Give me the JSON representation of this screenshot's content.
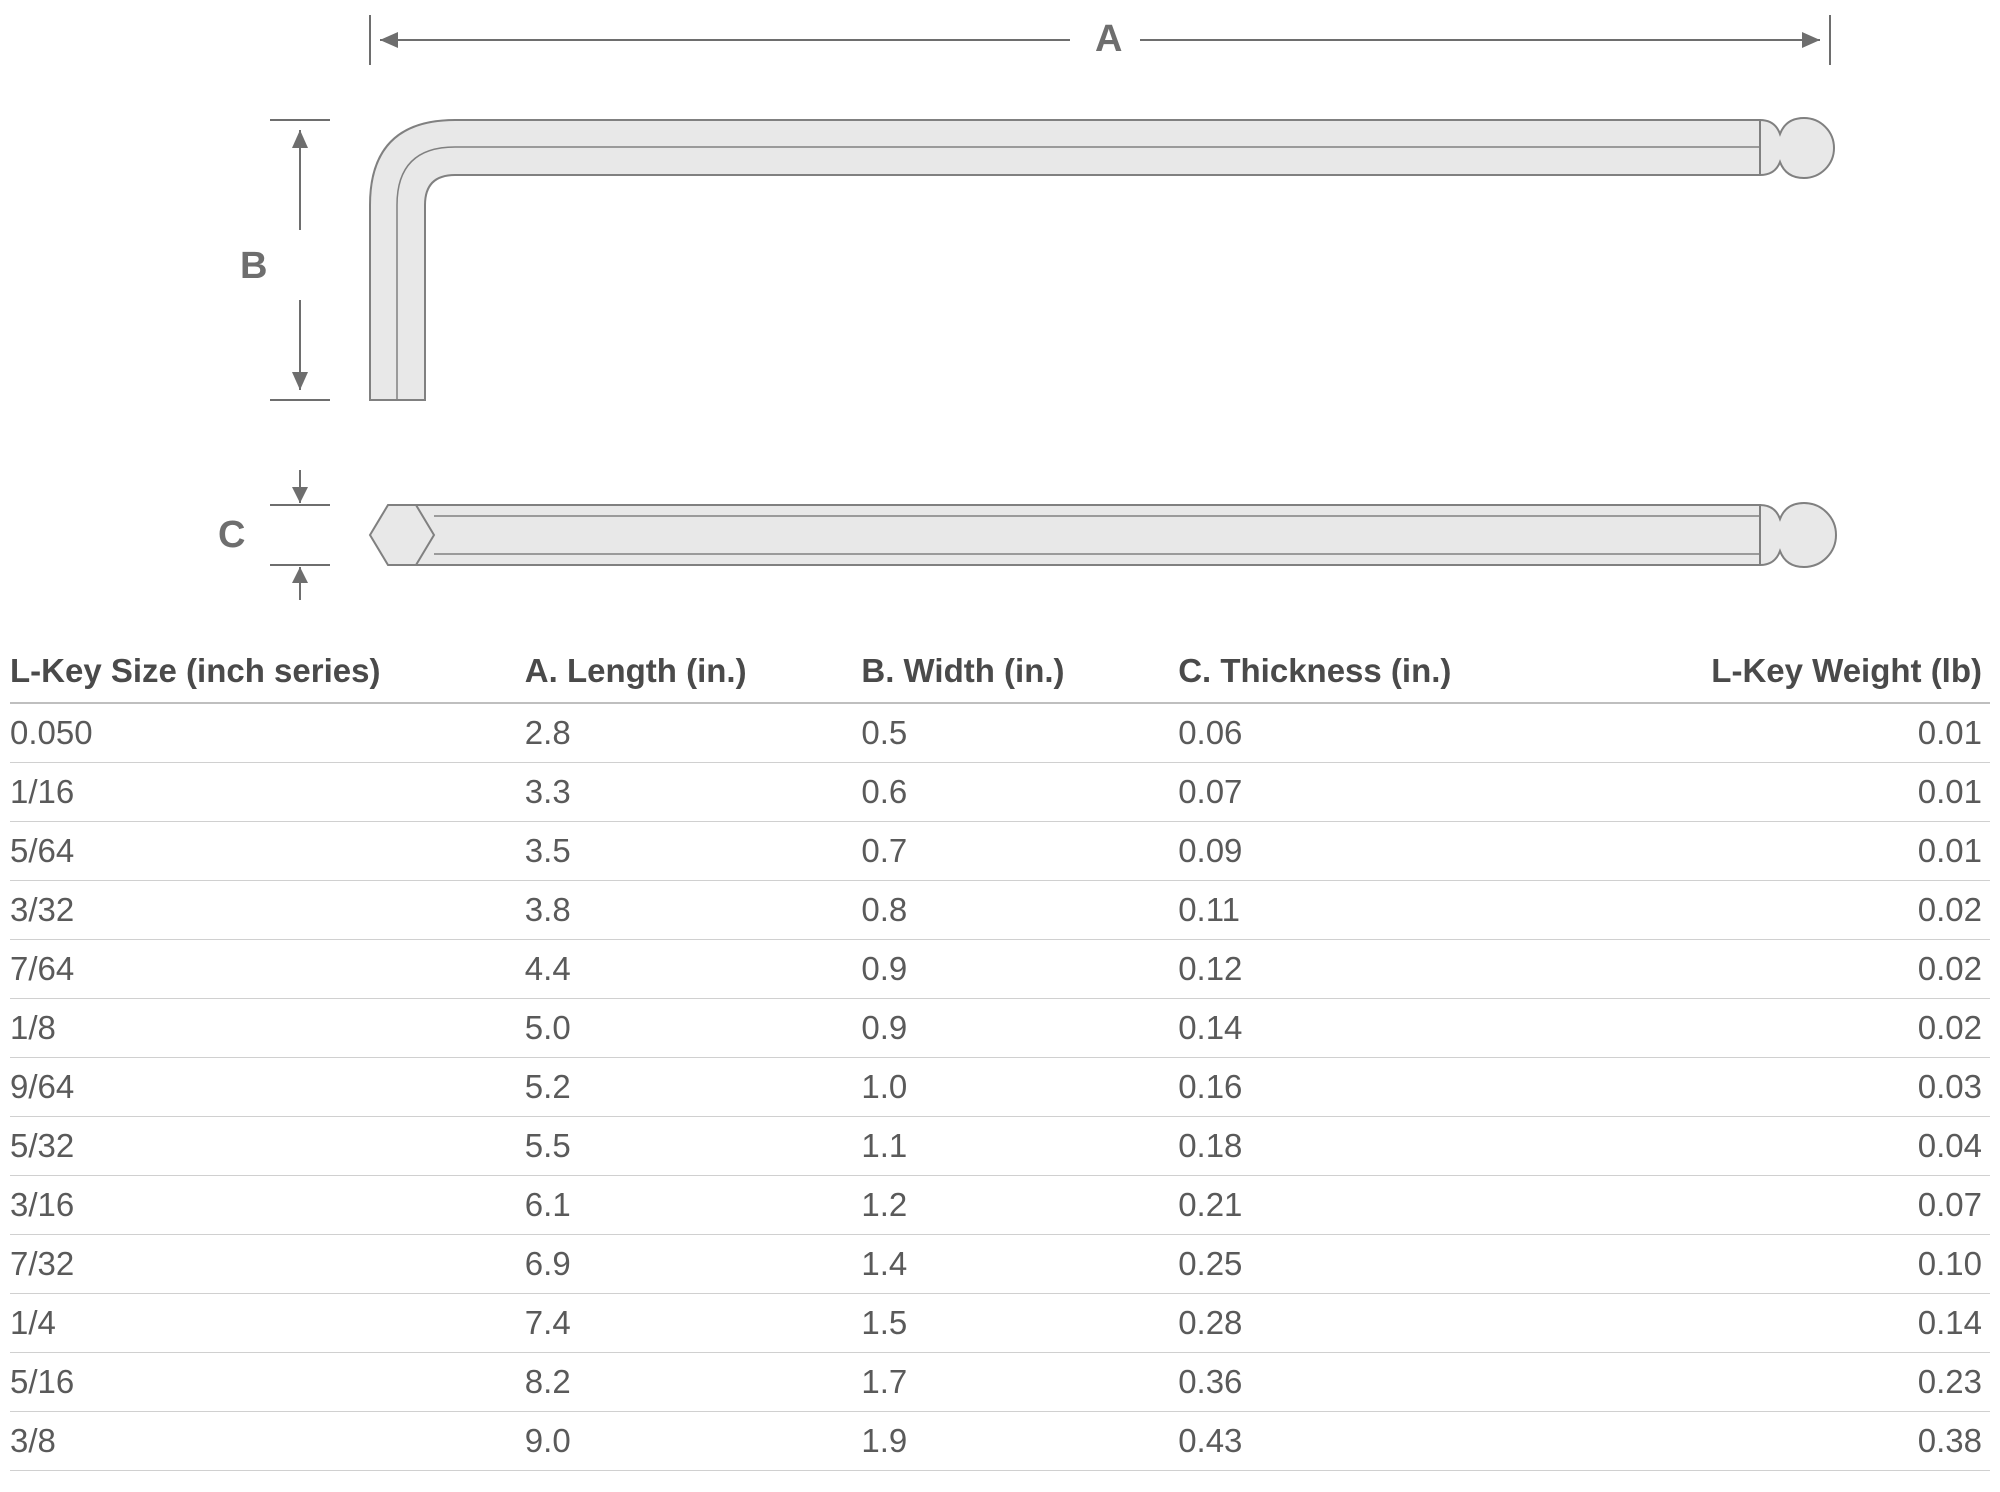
{
  "diagram": {
    "labels": {
      "A": "A",
      "B": "B",
      "C": "C"
    },
    "stroke_color": "#808080",
    "fill_color": "#e8e8e8",
    "line_color": "#6e6e6e",
    "background": "#ffffff"
  },
  "table": {
    "columns": [
      "L-Key Size (inch series)",
      "A. Length (in.)",
      "B. Width (in.)",
      "C. Thickness (in.)",
      "L-Key Weight (lb)"
    ],
    "rows": [
      [
        "0.050",
        "2.8",
        "0.5",
        "0.06",
        "0.01"
      ],
      [
        "1/16",
        "3.3",
        "0.6",
        "0.07",
        "0.01"
      ],
      [
        "5/64",
        "3.5",
        "0.7",
        "0.09",
        "0.01"
      ],
      [
        "3/32",
        "3.8",
        "0.8",
        "0.11",
        "0.02"
      ],
      [
        "7/64",
        "4.4",
        "0.9",
        "0.12",
        "0.02"
      ],
      [
        "1/8",
        "5.0",
        "0.9",
        "0.14",
        "0.02"
      ],
      [
        "9/64",
        "5.2",
        "1.0",
        "0.16",
        "0.03"
      ],
      [
        "5/32",
        "5.5",
        "1.1",
        "0.18",
        "0.04"
      ],
      [
        "3/16",
        "6.1",
        "1.2",
        "0.21",
        "0.07"
      ],
      [
        "7/32",
        "6.9",
        "1.4",
        "0.25",
        "0.10"
      ],
      [
        "1/4",
        "7.4",
        "1.5",
        "0.28",
        "0.14"
      ],
      [
        "5/16",
        "8.2",
        "1.7",
        "0.36",
        "0.23"
      ],
      [
        "3/8",
        "9.0",
        "1.9",
        "0.43",
        "0.38"
      ]
    ],
    "header_fontsize": 33,
    "cell_fontsize": 33,
    "header_color": "#4a4a4a",
    "cell_color": "#5a5a5a",
    "border_color": "#d0d0d0",
    "header_border_color": "#bfbfbf"
  }
}
